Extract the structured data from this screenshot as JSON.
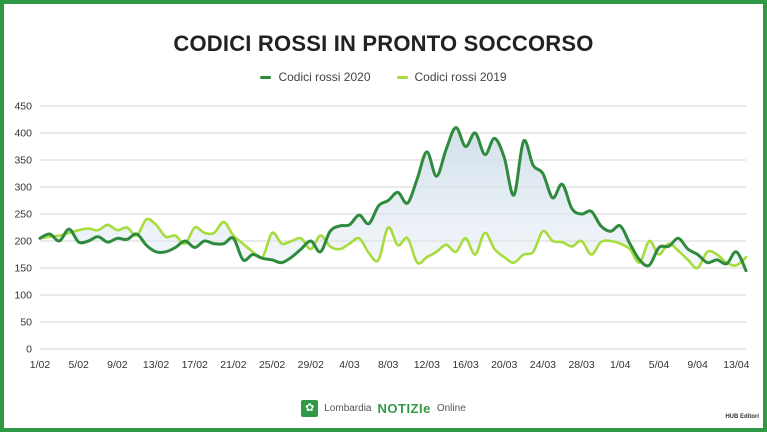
{
  "footer": {
    "brand_region": "Lombardia",
    "brand_name": "NOTIZIe",
    "brand_suffix": "Online",
    "logo_icon": "leaf-icon",
    "credit": "HUB Editori"
  },
  "colors": {
    "frame": "#2e9a46",
    "series_2020": "#2e8b3e",
    "series_2019": "#a6dc3c",
    "area_fill": "#dfe9f2",
    "grid": "#d5d5d5"
  },
  "chart_data": {
    "type": "line",
    "title": "CODICI ROSSI IN PRONTO SOCCORSO",
    "legend_position": "top-center",
    "grid": true,
    "ylim": [
      0,
      450
    ],
    "yticks": [
      0,
      50,
      100,
      150,
      200,
      250,
      300,
      350,
      400,
      450
    ],
    "xtick_labels": [
      "1/02",
      "5/02",
      "9/02",
      "13/02",
      "17/02",
      "21/02",
      "25/02",
      "29/02",
      "4/03",
      "8/03",
      "12/03",
      "16/03",
      "20/03",
      "24/03",
      "28/03",
      "1/04",
      "5/04",
      "9/04",
      "13/04"
    ],
    "xtick_index": [
      0,
      4,
      8,
      12,
      16,
      20,
      24,
      28,
      32,
      36,
      40,
      44,
      48,
      52,
      56,
      60,
      64,
      68,
      72
    ],
    "series": [
      {
        "name": "Codici rossi 2020",
        "color": "#2e8b3e",
        "values": [
          205,
          213,
          200,
          222,
          198,
          200,
          208,
          198,
          205,
          203,
          213,
          192,
          180,
          180,
          188,
          200,
          188,
          200,
          195,
          195,
          205,
          165,
          175,
          168,
          165,
          160,
          170,
          185,
          200,
          180,
          218,
          228,
          230,
          248,
          232,
          265,
          275,
          290,
          270,
          315,
          365,
          320,
          370,
          410,
          375,
          400,
          360,
          390,
          355,
          285,
          385,
          340,
          325,
          280,
          305,
          260,
          250,
          255,
          228,
          218,
          228,
          195,
          165,
          155,
          188,
          190,
          205,
          185,
          175,
          160,
          165,
          158,
          180,
          145
        ]
      },
      {
        "name": "Codici rossi 2019",
        "color": "#a6dc3c",
        "values": [
          205,
          208,
          210,
          215,
          220,
          223,
          220,
          230,
          220,
          225,
          210,
          240,
          230,
          208,
          210,
          195,
          225,
          215,
          215,
          235,
          210,
          195,
          180,
          170,
          215,
          195,
          200,
          205,
          185,
          210,
          190,
          185,
          195,
          205,
          178,
          165,
          225,
          192,
          205,
          160,
          170,
          180,
          193,
          180,
          205,
          175,
          215,
          185,
          170,
          160,
          175,
          180,
          218,
          200,
          198,
          190,
          200,
          175,
          198,
          200,
          195,
          185,
          160,
          200,
          175,
          195,
          182,
          165,
          150,
          180,
          175,
          160,
          155,
          170
        ]
      }
    ]
  }
}
